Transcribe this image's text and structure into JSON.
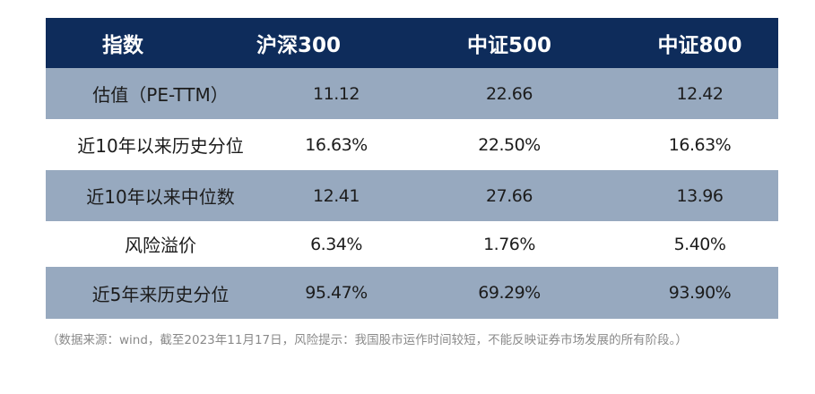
{
  "table": {
    "headers": [
      "指数",
      "沪深300",
      "中证500",
      "中证800"
    ],
    "rows": [
      {
        "label": "估值（PE-TTM）",
        "values": [
          "11.12",
          "22.66",
          "12.42"
        ]
      },
      {
        "label": "近10年以来历史分位",
        "values": [
          "16.63%",
          "22.50%",
          "16.63%"
        ]
      },
      {
        "label": "近10年以来中位数",
        "values": [
          "12.41",
          "27.66",
          "13.96"
        ]
      },
      {
        "label": "风险溢价",
        "values": [
          "6.34%",
          "1.76%",
          "5.40%"
        ]
      },
      {
        "label": "近5年来历史分位",
        "values": [
          "95.47%",
          "69.29%",
          "93.90%"
        ]
      }
    ]
  },
  "note": "（数据来源：wind，截至2023年11月17日，风险提示：我国股市运作时间较短，不能反映证券市场发展的所有阶段。）",
  "colors": {
    "header_bg": "#0e2c5b",
    "band_bg": "#97a9bf",
    "header_text": "#ffffff"
  }
}
